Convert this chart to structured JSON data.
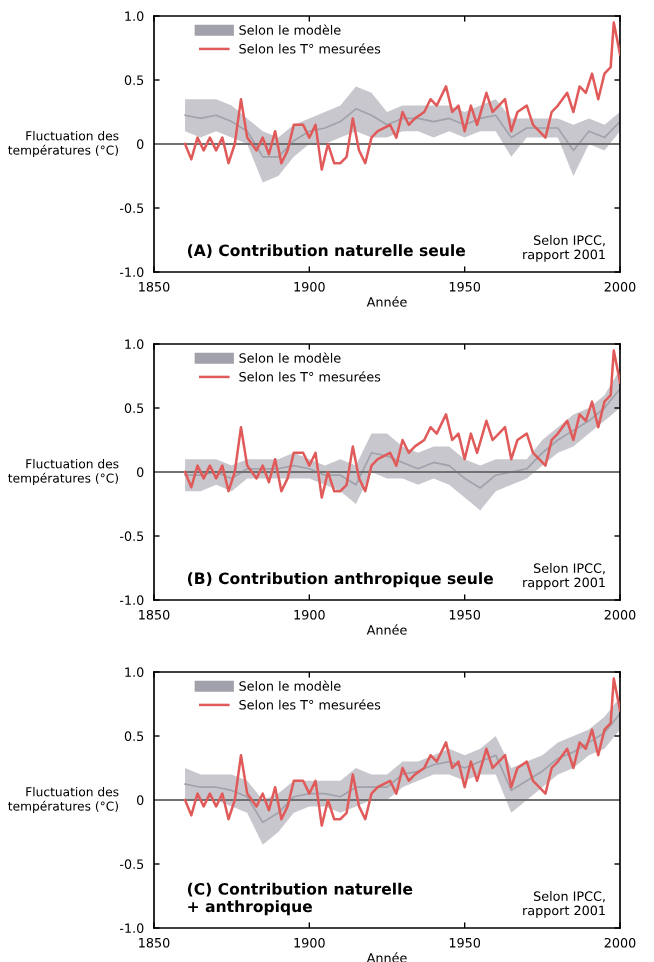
{
  "chart_data": [
    {
      "type": "line",
      "xlabel": "Année",
      "ylabel": "Fluctuation des\ntempératures (°C)",
      "xlim": [
        1850,
        2000
      ],
      "ylim": [
        -1.0,
        1.0
      ],
      "xticks": [
        1850,
        1900,
        1950,
        2000
      ],
      "yticks": [
        {
          "value": -1.0,
          "label": "-1.0"
        },
        {
          "value": -0.5,
          "label": "-0.5"
        },
        {
          "value": 0,
          "label": "0"
        },
        {
          "value": 0.5,
          "label": "0.5"
        },
        {
          "value": 1.0,
          "label": "1.0"
        }
      ],
      "legend": "top left",
      "grid": false,
      "annotations": [
        "(A) Contribution naturelle seule",
        "Selon IPCC,\nrapport 2001"
      ],
      "ref_lines": [
        {
          "axis": "y",
          "value": 0,
          "color": "#707070"
        }
      ],
      "series": [
        {
          "name": "Selon le modèle",
          "color": "#a1a1ab",
          "x": [
            1860,
            1865,
            1870,
            1875,
            1880,
            1885,
            1890,
            1895,
            1900,
            1905,
            1910,
            1915,
            1920,
            1925,
            1930,
            1935,
            1940,
            1945,
            1950,
            1955,
            1960,
            1965,
            1970,
            1975,
            1980,
            1985,
            1990,
            1995,
            2000
          ],
          "values": [
            0.225,
            0.2,
            0.225,
            0.175,
            0.1,
            -0.1,
            -0.1,
            0.025,
            0.1,
            0.125,
            0.175,
            0.275,
            0.225,
            0.15,
            0.2,
            0.2,
            0.175,
            0.2,
            0.15,
            0.2,
            0.225,
            0.05,
            0.125,
            0.125,
            0.125,
            -0.05,
            0.1,
            0.05,
            0.175
          ],
          "lower": [
            0.1,
            0.05,
            0.1,
            0.05,
            0.0,
            -0.3,
            -0.25,
            -0.1,
            0.0,
            0.0,
            0.05,
            0.1,
            0.05,
            0.05,
            0.1,
            0.1,
            0.05,
            0.1,
            0.05,
            0.1,
            0.1,
            -0.1,
            0.05,
            0.05,
            0.05,
            -0.25,
            0.0,
            -0.05,
            0.1
          ],
          "upper": [
            0.35,
            0.35,
            0.35,
            0.3,
            0.2,
            0.1,
            0.05,
            0.15,
            0.2,
            0.25,
            0.3,
            0.45,
            0.4,
            0.25,
            0.3,
            0.3,
            0.3,
            0.3,
            0.25,
            0.3,
            0.35,
            0.2,
            0.2,
            0.2,
            0.2,
            0.15,
            0.2,
            0.15,
            0.25
          ]
        },
        {
          "name": "Selon les T° mesurées",
          "color": "#e05a5a",
          "x": [
            1860,
            1862,
            1864,
            1866,
            1868,
            1870,
            1872,
            1874,
            1876,
            1878,
            1880,
            1883,
            1885,
            1887,
            1889,
            1891,
            1893,
            1895,
            1898,
            1900,
            1902,
            1904,
            1906,
            1908,
            1910,
            1912,
            1914,
            1916,
            1918,
            1920,
            1922,
            1926,
            1928,
            1930,
            1932,
            1934,
            1937,
            1939,
            1941,
            1944,
            1946,
            1948,
            1950,
            1952,
            1954,
            1957,
            1959,
            1961,
            1963,
            1965,
            1967,
            1970,
            1972,
            1974,
            1976,
            1978,
            1980,
            1983,
            1985,
            1987,
            1989,
            1991,
            1993,
            1995,
            1997,
            1998,
            2000
          ],
          "values": [
            0.0,
            -0.12,
            0.05,
            -0.05,
            0.05,
            -0.05,
            0.05,
            -0.15,
            0.0,
            0.35,
            0.05,
            -0.05,
            0.05,
            -0.08,
            0.1,
            -0.15,
            -0.05,
            0.15,
            0.15,
            0.05,
            0.15,
            -0.2,
            0.0,
            -0.15,
            -0.15,
            -0.1,
            0.2,
            -0.05,
            -0.15,
            0.05,
            0.1,
            0.15,
            0.05,
            0.25,
            0.15,
            0.2,
            0.25,
            0.35,
            0.3,
            0.45,
            0.25,
            0.3,
            0.1,
            0.3,
            0.15,
            0.4,
            0.25,
            0.3,
            0.35,
            0.1,
            0.25,
            0.3,
            0.15,
            0.1,
            0.05,
            0.25,
            0.3,
            0.4,
            0.25,
            0.45,
            0.4,
            0.55,
            0.35,
            0.55,
            0.6,
            0.95,
            0.7
          ]
        }
      ]
    },
    {
      "type": "line",
      "xlabel": "Année",
      "ylabel": "Fluctuation des\ntempératures (°C)",
      "xlim": [
        1850,
        2000
      ],
      "ylim": [
        -1.0,
        1.0
      ],
      "xticks": [
        1850,
        1900,
        1950,
        2000
      ],
      "yticks": [
        {
          "value": -1.0,
          "label": "-1.0"
        },
        {
          "value": -0.5,
          "label": "-0.5"
        },
        {
          "value": 0,
          "label": "0"
        },
        {
          "value": 0.5,
          "label": "0.5"
        },
        {
          "value": 1.0,
          "label": "1.0"
        }
      ],
      "legend": "top left",
      "grid": false,
      "annotations": [
        "(B) Contribution anthropique seule",
        "Selon IPCC,\nrapport 2001"
      ],
      "ref_lines": [
        {
          "axis": "y",
          "value": 0,
          "color": "#707070"
        }
      ],
      "series": [
        {
          "name": "Selon le modèle",
          "color": "#a1a1ab",
          "x": [
            1860,
            1865,
            1870,
            1875,
            1880,
            1885,
            1890,
            1895,
            1900,
            1905,
            1910,
            1915,
            1920,
            1925,
            1930,
            1935,
            1940,
            1945,
            1950,
            1955,
            1960,
            1965,
            1970,
            1975,
            1980,
            1985,
            1990,
            1995,
            2000
          ],
          "values": [
            -0.025,
            -0.025,
            0.0,
            -0.05,
            0.025,
            0.025,
            0.025,
            0.05,
            0.025,
            -0.025,
            -0.025,
            -0.1,
            0.15,
            0.125,
            0.075,
            0.025,
            0.075,
            0.05,
            -0.05,
            -0.125,
            -0.025,
            0.0,
            0.025,
            0.15,
            0.25,
            0.325,
            0.4,
            0.5,
            0.65
          ],
          "lower": [
            -0.15,
            -0.15,
            -0.1,
            -0.15,
            -0.05,
            -0.05,
            -0.05,
            -0.05,
            -0.05,
            -0.1,
            -0.15,
            -0.25,
            0.0,
            -0.05,
            -0.05,
            -0.1,
            -0.05,
            -0.1,
            -0.2,
            -0.3,
            -0.15,
            -0.1,
            -0.05,
            0.05,
            0.15,
            0.2,
            0.3,
            0.4,
            0.5
          ],
          "upper": [
            0.1,
            0.1,
            0.1,
            0.05,
            0.1,
            0.1,
            0.1,
            0.15,
            0.1,
            0.05,
            0.1,
            0.05,
            0.3,
            0.3,
            0.2,
            0.15,
            0.2,
            0.2,
            0.1,
            0.05,
            0.1,
            0.1,
            0.1,
            0.25,
            0.35,
            0.45,
            0.5,
            0.6,
            0.8
          ]
        },
        {
          "name": "Selon les T° mesurées",
          "color": "#e05a5a",
          "x": [
            1860,
            1862,
            1864,
            1866,
            1868,
            1870,
            1872,
            1874,
            1876,
            1878,
            1880,
            1883,
            1885,
            1887,
            1889,
            1891,
            1893,
            1895,
            1898,
            1900,
            1902,
            1904,
            1906,
            1908,
            1910,
            1912,
            1914,
            1916,
            1918,
            1920,
            1922,
            1926,
            1928,
            1930,
            1932,
            1934,
            1937,
            1939,
            1941,
            1944,
            1946,
            1948,
            1950,
            1952,
            1954,
            1957,
            1959,
            1961,
            1963,
            1965,
            1967,
            1970,
            1972,
            1974,
            1976,
            1978,
            1980,
            1983,
            1985,
            1987,
            1989,
            1991,
            1993,
            1995,
            1997,
            1998,
            2000
          ],
          "values": [
            0.0,
            -0.12,
            0.05,
            -0.05,
            0.05,
            -0.05,
            0.05,
            -0.15,
            0.0,
            0.35,
            0.05,
            -0.05,
            0.05,
            -0.08,
            0.1,
            -0.15,
            -0.05,
            0.15,
            0.15,
            0.05,
            0.15,
            -0.2,
            0.0,
            -0.15,
            -0.15,
            -0.1,
            0.2,
            -0.05,
            -0.15,
            0.05,
            0.1,
            0.15,
            0.05,
            0.25,
            0.15,
            0.2,
            0.25,
            0.35,
            0.3,
            0.45,
            0.25,
            0.3,
            0.1,
            0.3,
            0.15,
            0.4,
            0.25,
            0.3,
            0.35,
            0.1,
            0.25,
            0.3,
            0.15,
            0.1,
            0.05,
            0.25,
            0.3,
            0.4,
            0.25,
            0.45,
            0.4,
            0.55,
            0.35,
            0.55,
            0.6,
            0.95,
            0.7
          ]
        }
      ]
    },
    {
      "type": "line",
      "xlabel": "Année",
      "ylabel": "Fluctuation des\ntempératures (°C)",
      "xlim": [
        1850,
        2000
      ],
      "ylim": [
        -1.0,
        1.0
      ],
      "xticks": [
        1850,
        1900,
        1950,
        2000
      ],
      "yticks": [
        {
          "value": -1.0,
          "label": "-1.0"
        },
        {
          "value": -0.5,
          "label": "-0.5"
        },
        {
          "value": 0,
          "label": "0"
        },
        {
          "value": 0.5,
          "label": "0.5"
        },
        {
          "value": 1.0,
          "label": "1.0"
        }
      ],
      "legend": "top left",
      "grid": false,
      "annotations": [
        "(C) Contribution naturelle\n+ anthropique",
        "Selon IPCC,\nrapport 2001"
      ],
      "ref_lines": [
        {
          "axis": "y",
          "value": 0,
          "color": "#707070"
        }
      ],
      "series": [
        {
          "name": "Selon le modèle",
          "color": "#a1a1ab",
          "x": [
            1860,
            1865,
            1870,
            1875,
            1880,
            1885,
            1890,
            1895,
            1900,
            1905,
            1910,
            1915,
            1920,
            1925,
            1930,
            1935,
            1940,
            1945,
            1950,
            1955,
            1960,
            1965,
            1970,
            1975,
            1980,
            1985,
            1990,
            1995,
            2000
          ],
          "values": [
            0.125,
            0.1,
            0.1,
            0.075,
            0.025,
            -0.175,
            -0.1,
            0.025,
            0.05,
            0.05,
            0.025,
            0.1,
            0.1,
            0.1,
            0.2,
            0.225,
            0.275,
            0.3,
            0.25,
            0.3,
            0.35,
            0.075,
            0.15,
            0.225,
            0.325,
            0.375,
            0.45,
            0.525,
            0.675
          ],
          "lower": [
            0.0,
            0.0,
            0.0,
            -0.05,
            -0.1,
            -0.35,
            -0.25,
            -0.1,
            -0.05,
            -0.05,
            -0.1,
            -0.05,
            0.0,
            0.0,
            0.1,
            0.15,
            0.2,
            0.2,
            0.15,
            0.2,
            0.2,
            -0.1,
            0.0,
            0.1,
            0.2,
            0.25,
            0.35,
            0.4,
            0.55
          ],
          "upper": [
            0.25,
            0.2,
            0.2,
            0.2,
            0.15,
            0.0,
            0.05,
            0.15,
            0.15,
            0.15,
            0.15,
            0.25,
            0.2,
            0.2,
            0.3,
            0.3,
            0.35,
            0.4,
            0.35,
            0.4,
            0.5,
            0.25,
            0.3,
            0.35,
            0.45,
            0.5,
            0.55,
            0.65,
            0.8
          ]
        },
        {
          "name": "Selon les T° mesurées",
          "color": "#e05a5a",
          "x": [
            1860,
            1862,
            1864,
            1866,
            1868,
            1870,
            1872,
            1874,
            1876,
            1878,
            1880,
            1883,
            1885,
            1887,
            1889,
            1891,
            1893,
            1895,
            1898,
            1900,
            1902,
            1904,
            1906,
            1908,
            1910,
            1912,
            1914,
            1916,
            1918,
            1920,
            1922,
            1926,
            1928,
            1930,
            1932,
            1934,
            1937,
            1939,
            1941,
            1944,
            1946,
            1948,
            1950,
            1952,
            1954,
            1957,
            1959,
            1961,
            1963,
            1965,
            1967,
            1970,
            1972,
            1974,
            1976,
            1978,
            1980,
            1983,
            1985,
            1987,
            1989,
            1991,
            1993,
            1995,
            1997,
            1998,
            2000
          ],
          "values": [
            0.0,
            -0.12,
            0.05,
            -0.05,
            0.05,
            -0.05,
            0.05,
            -0.15,
            0.0,
            0.35,
            0.05,
            -0.05,
            0.05,
            -0.08,
            0.1,
            -0.15,
            -0.05,
            0.15,
            0.15,
            0.05,
            0.15,
            -0.2,
            0.0,
            -0.15,
            -0.15,
            -0.1,
            0.2,
            -0.05,
            -0.15,
            0.05,
            0.1,
            0.15,
            0.05,
            0.25,
            0.15,
            0.2,
            0.25,
            0.35,
            0.3,
            0.45,
            0.25,
            0.3,
            0.1,
            0.3,
            0.15,
            0.4,
            0.25,
            0.3,
            0.35,
            0.1,
            0.25,
            0.3,
            0.15,
            0.1,
            0.05,
            0.25,
            0.3,
            0.4,
            0.25,
            0.45,
            0.4,
            0.55,
            0.35,
            0.55,
            0.6,
            0.95,
            0.7
          ]
        }
      ]
    }
  ]
}
